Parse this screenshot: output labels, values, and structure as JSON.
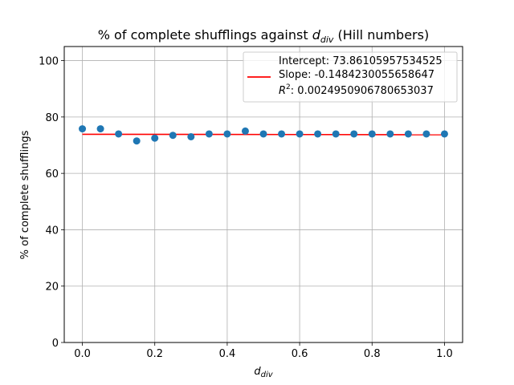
{
  "chart_data": {
    "type": "scatter",
    "title": {
      "prefix": "% of complete shufflings against ",
      "var_main": "d",
      "var_sub": "div",
      "suffix": " (Hill numbers)"
    },
    "xlabel": {
      "main": "d",
      "sub": "div"
    },
    "ylabel": "% of complete shufflings",
    "xlim": [
      -0.05,
      1.05
    ],
    "ylim": [
      0,
      105
    ],
    "xticks": [
      0.0,
      0.2,
      0.4,
      0.6,
      0.8,
      1.0
    ],
    "xtick_labels": [
      "0.0",
      "0.2",
      "0.4",
      "0.6",
      "0.8",
      "1.0"
    ],
    "yticks": [
      0,
      20,
      40,
      60,
      80,
      100
    ],
    "ytick_labels": [
      "0",
      "20",
      "40",
      "60",
      "80",
      "100"
    ],
    "grid": true,
    "legend_position": "top-right",
    "points": {
      "x": [
        0.0,
        0.05,
        0.1,
        0.15,
        0.2,
        0.25,
        0.3,
        0.35,
        0.4,
        0.45,
        0.5,
        0.55,
        0.6,
        0.65,
        0.7,
        0.75,
        0.8,
        0.85,
        0.9,
        0.95,
        1.0
      ],
      "y": [
        75.8,
        75.8,
        74.0,
        71.5,
        72.5,
        73.5,
        73.0,
        74.0,
        74.0,
        75.0,
        74.0,
        74.0,
        74.0,
        74.0,
        74.0,
        74.0,
        74.0,
        74.0,
        74.0,
        74.0,
        74.0
      ],
      "color": "#1f77b4"
    },
    "fit_line": {
      "intercept": 73.86105957534525,
      "slope": -0.1484230055658647,
      "x_range": [
        0.0,
        1.0
      ],
      "color": "#ff0000"
    },
    "legend": {
      "intercept_label": "Intercept: 73.86105957534525",
      "slope_label": "Slope: -0.1484230055658647",
      "r2_prefix": "R",
      "r2_sup": "2",
      "r2_value": ": 0.002495090678065303​7"
    }
  }
}
